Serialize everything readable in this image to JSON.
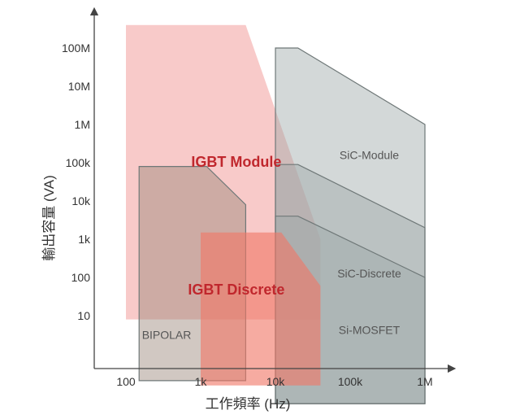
{
  "chart_data": {
    "type": "area",
    "xlabel": "工作頻率 (Hz)",
    "ylabel": "輸出容量 (VA)",
    "x_ticks": [
      "100",
      "1k",
      "10k",
      "100k",
      "1M"
    ],
    "y_ticks": [
      "100M",
      "10M",
      "1M",
      "100k",
      "10k",
      "1k",
      "100",
      "10"
    ],
    "xlim": [
      50,
      2000000
    ],
    "ylim": [
      1,
      1000000000
    ],
    "x_scale": "log",
    "y_scale": "log",
    "grid": false,
    "regions": [
      {
        "name": "IGBT Module",
        "color": "#f4aaa8",
        "label_color": "#c0272d",
        "label_x": 3000,
        "label_y": 100000,
        "points": [
          [
            100,
            8
          ],
          [
            100,
            400000000
          ],
          [
            4000,
            400000000
          ],
          [
            40000,
            1000
          ],
          [
            40000,
            8
          ]
        ]
      },
      {
        "name": "SiC-Module",
        "color": "#9ea8a8",
        "label_color": "#555555",
        "label_x": 180000,
        "label_y": 150000,
        "points": [
          [
            10000,
            0.05
          ],
          [
            10000,
            100000000
          ],
          [
            20000,
            100000000
          ],
          [
            1000000,
            1000000
          ],
          [
            1000000,
            0.05
          ]
        ]
      },
      {
        "name": "SiC-Discrete",
        "color": "#9ea8a8",
        "label_color": "#555555",
        "label_x": 180000,
        "label_y": 120,
        "points": [
          [
            10000,
            0.05
          ],
          [
            10000,
            90000
          ],
          [
            20000,
            90000
          ],
          [
            1000000,
            2000
          ],
          [
            1000000,
            0.05
          ]
        ]
      },
      {
        "name": "Si-MOSFET",
        "color": "#9ea8a8",
        "label_color": "#555555",
        "label_x": 180000,
        "label_y": 4,
        "points": [
          [
            10000,
            0.05
          ],
          [
            10000,
            4000
          ],
          [
            20000,
            4000
          ],
          [
            1000000,
            100
          ],
          [
            1000000,
            0.05
          ]
        ]
      },
      {
        "name": "BIPOLAR",
        "color": "#9a8478",
        "label_color": "#555555",
        "label_x": 350,
        "label_y": 3,
        "points": [
          [
            150,
            0.2
          ],
          [
            150,
            80000
          ],
          [
            1200,
            80000
          ],
          [
            4000,
            8000
          ],
          [
            4000,
            0.2
          ]
        ]
      },
      {
        "name": "IGBT Discrete",
        "color": "#f07868",
        "label_color": "#c0272d",
        "label_x": 3000,
        "label_y": 45,
        "points": [
          [
            1000,
            0.15
          ],
          [
            1000,
            1500
          ],
          [
            12000,
            1500
          ],
          [
            40000,
            60
          ],
          [
            40000,
            0.15
          ]
        ]
      }
    ]
  }
}
